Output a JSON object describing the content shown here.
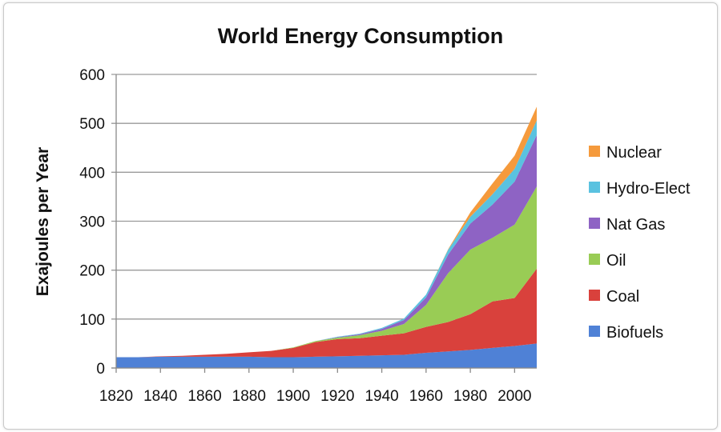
{
  "chart_data": {
    "type": "area",
    "stacked": true,
    "title": "World Energy Consumption",
    "xlabel": "",
    "ylabel": "Exajoules per Year",
    "xlim": [
      1820,
      2010
    ],
    "ylim": [
      0,
      600
    ],
    "x_ticks": [
      1820,
      1840,
      1860,
      1880,
      1900,
      1920,
      1940,
      1960,
      1980,
      2000
    ],
    "y_ticks": [
      0,
      100,
      200,
      300,
      400,
      500,
      600
    ],
    "grid": "horizontal",
    "legend_position": "right",
    "x": [
      1820,
      1830,
      1840,
      1850,
      1860,
      1870,
      1880,
      1890,
      1900,
      1910,
      1920,
      1930,
      1940,
      1950,
      1960,
      1970,
      1980,
      1990,
      2000,
      2010
    ],
    "series": [
      {
        "name": "Biofuels",
        "color": "#4f81d6",
        "values": [
          22,
          22,
          23,
          23,
          23,
          23,
          23,
          22,
          22,
          23,
          24,
          25,
          26,
          27,
          31,
          34,
          37,
          41,
          45,
          50
        ]
      },
      {
        "name": "Coal",
        "color": "#d9413c",
        "values": [
          0,
          0,
          1,
          2,
          4,
          6,
          9,
          13,
          19,
          30,
          35,
          36,
          40,
          44,
          53,
          60,
          73,
          95,
          98,
          153
        ]
      },
      {
        "name": "Oil",
        "color": "#99cc55",
        "values": [
          0,
          0,
          0,
          0,
          0,
          0,
          0,
          0,
          1,
          2,
          3,
          6,
          10,
          19,
          45,
          100,
          132,
          130,
          150,
          168
        ]
      },
      {
        "name": "Nat Gas",
        "color": "#8e63c4",
        "values": [
          0,
          0,
          0,
          0,
          0,
          0,
          0,
          0,
          0,
          0,
          1,
          2,
          4,
          8,
          15,
          38,
          53,
          68,
          88,
          105
        ]
      },
      {
        "name": "Hydro-Elect",
        "color": "#5ac2e0",
        "values": [
          0,
          0,
          0,
          0,
          0,
          0,
          0,
          0,
          0,
          0,
          1,
          1,
          2,
          3,
          6,
          10,
          14,
          21,
          26,
          30
        ]
      },
      {
        "name": "Nuclear",
        "color": "#f59a3c",
        "values": [
          0,
          0,
          0,
          0,
          0,
          0,
          0,
          0,
          0,
          0,
          0,
          0,
          0,
          0,
          0,
          1,
          9,
          22,
          27,
          28
        ]
      }
    ]
  }
}
